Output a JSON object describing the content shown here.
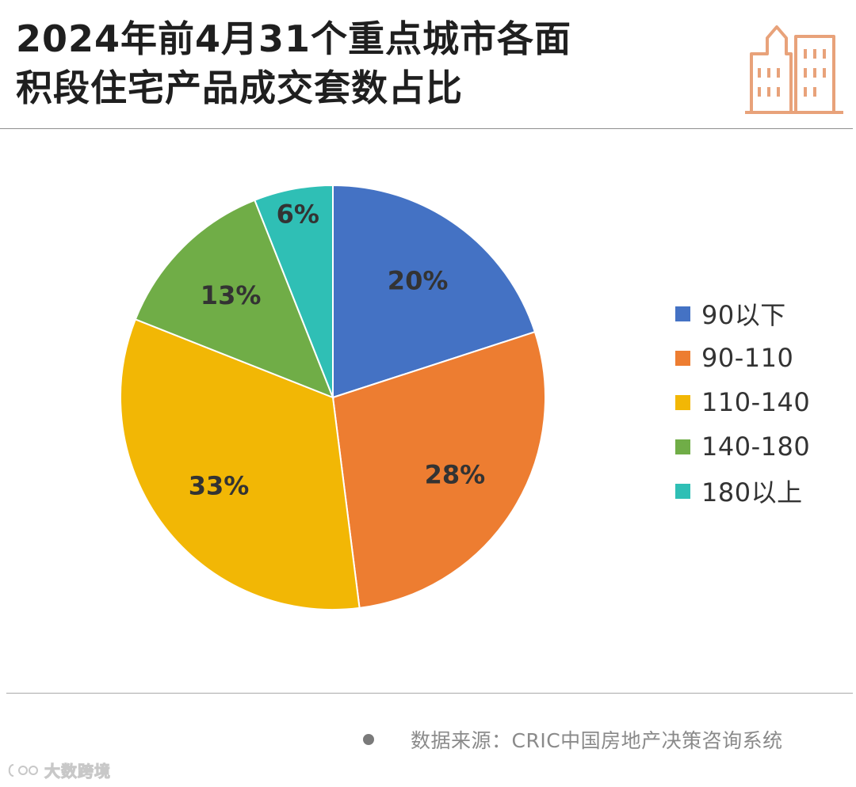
{
  "header": {
    "title_line1": "2024年前4月31个重点城市各面",
    "title_line2": "积段住宅产品成交套数占比",
    "icon": "city-buildings-icon",
    "icon_color": "#E8A27A"
  },
  "chart_data": {
    "type": "pie",
    "title": "2024年前4月31个重点城市各面积段住宅产品成交套数占比",
    "categories": [
      "90以下",
      "90-110",
      "110-140",
      "140-180",
      "180以上"
    ],
    "values": [
      20,
      28,
      33,
      13,
      6
    ],
    "labels": [
      "20%",
      "28%",
      "33%",
      "13%",
      "6%"
    ],
    "colors": [
      "#4472C4",
      "#ED7D31",
      "#F2B705",
      "#70AD47",
      "#2FBFB5"
    ],
    "start_angle_deg": 0,
    "direction": "clockwise",
    "legend_position": "right"
  },
  "footer": {
    "source": "数据来源：CRIC中国房地产决策咨询系统",
    "brand": "大数跨境",
    "brand_icon": "brand-logo-icon"
  }
}
